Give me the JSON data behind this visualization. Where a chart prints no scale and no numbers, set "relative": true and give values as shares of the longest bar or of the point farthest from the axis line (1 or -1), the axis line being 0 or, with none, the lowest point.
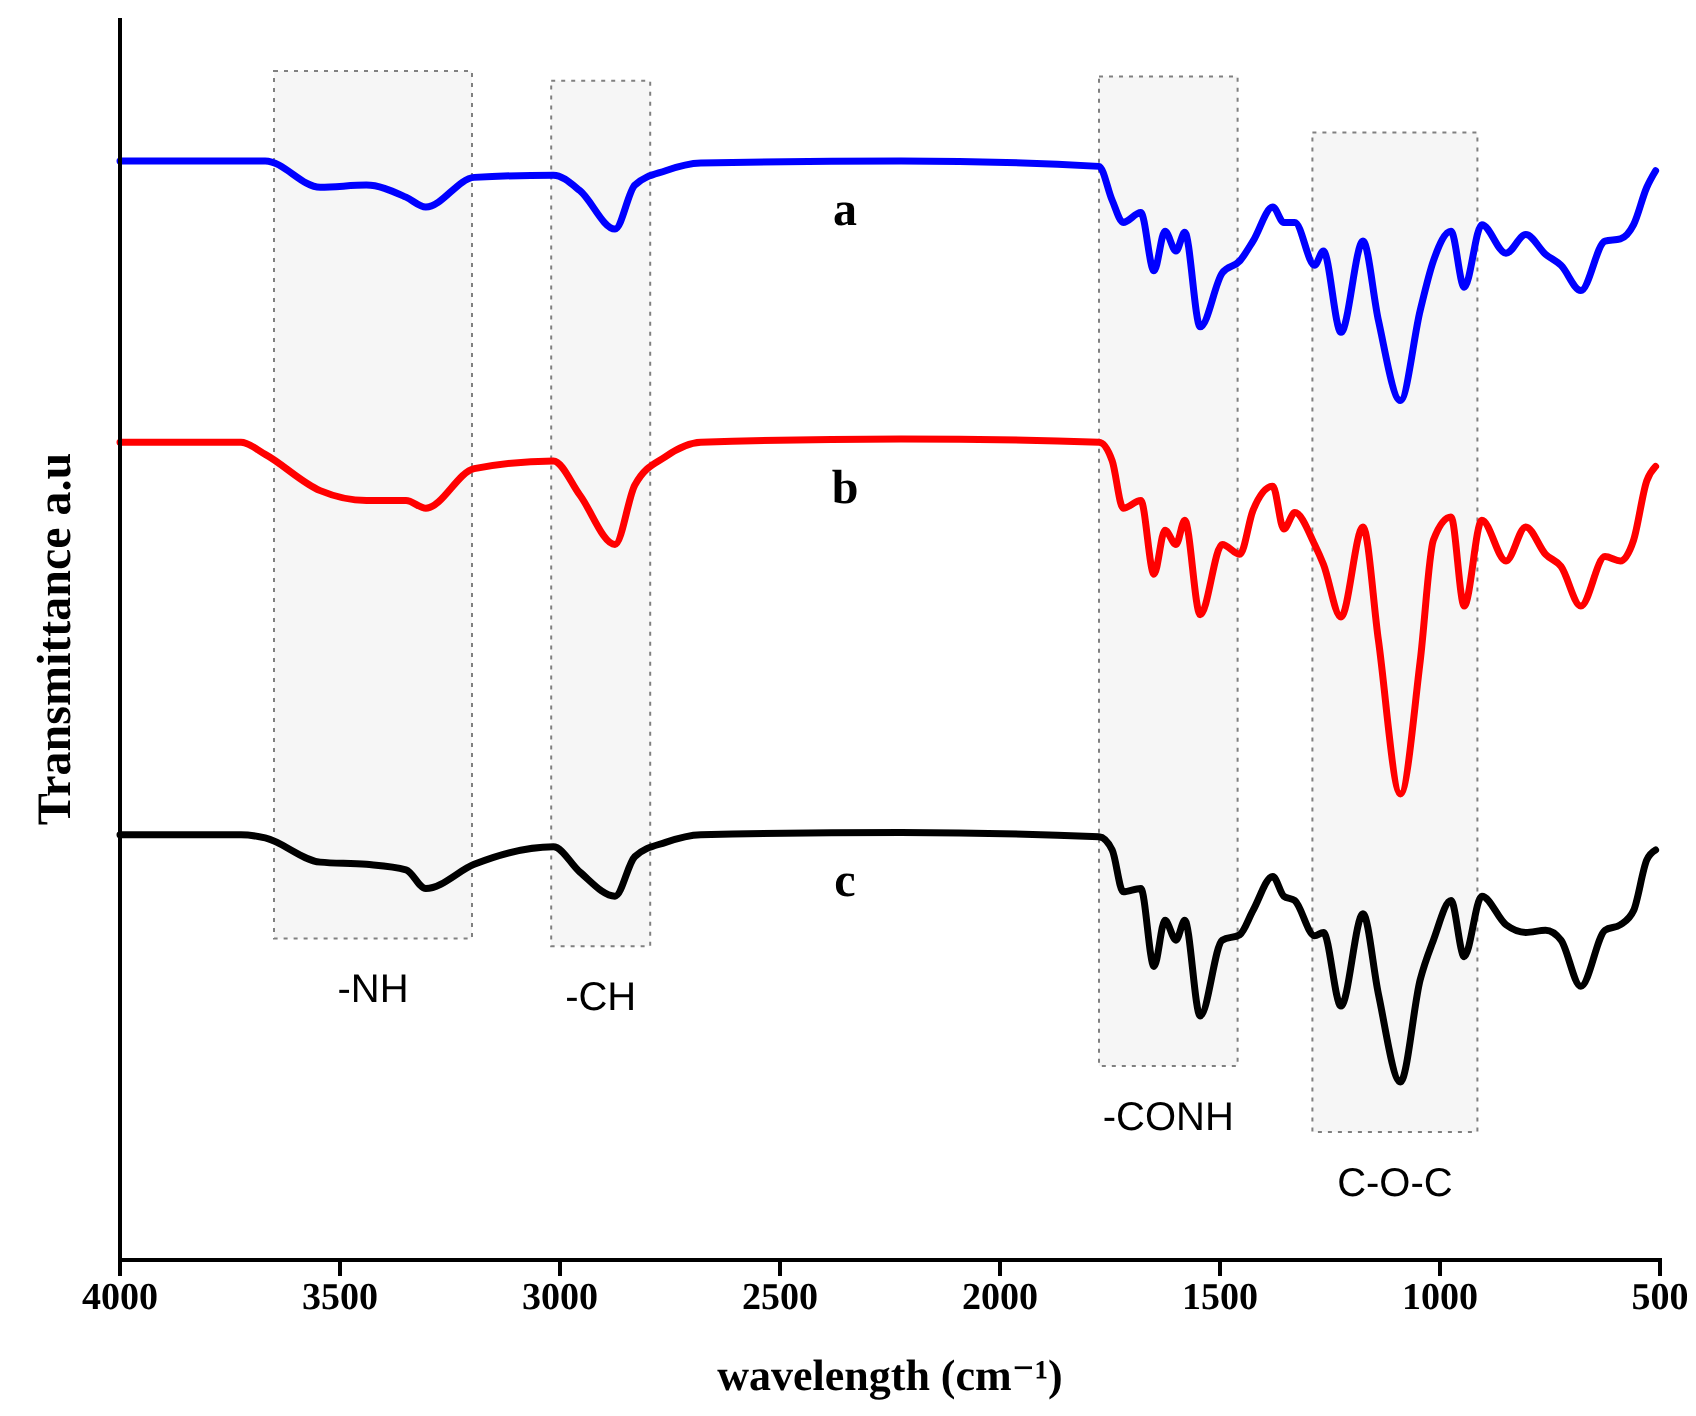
{
  "chart_data": {
    "type": "line",
    "relative": true,
    "xlabel": "wavelength (cm⁻¹)",
    "ylabel": "Transmittance a.u",
    "x": [
      4000,
      3725,
      3670,
      3545,
      3440,
      3350,
      3305,
      3195,
      3015,
      2955,
      2875,
      2830,
      2760,
      2680,
      2225,
      1775,
      1745,
      1720,
      1680,
      1650,
      1625,
      1600,
      1580,
      1545,
      1495,
      1455,
      1425,
      1380,
      1355,
      1330,
      1285,
      1265,
      1225,
      1175,
      1140,
      1090,
      1045,
      1015,
      975,
      945,
      905,
      850,
      805,
      760,
      725,
      680,
      625,
      590,
      560,
      530,
      510
    ],
    "xlim": [
      4000,
      500
    ],
    "xticks": [
      4000,
      3500,
      3000,
      2500,
      2000,
      1500,
      1000,
      500
    ],
    "series": [
      {
        "name": "a",
        "color": "#0000ff",
        "values": [
          1,
          1,
          1,
          0.976,
          0.978,
          0.967,
          0.958,
          0.985,
          0.987,
          0.973,
          0.938,
          0.978,
          0.991,
          0.998,
          1,
          0.995,
          0.964,
          0.944,
          0.953,
          0.9,
          0.936,
          0.918,
          0.935,
          0.849,
          0.898,
          0.909,
          0.927,
          0.958,
          0.944,
          0.944,
          0.905,
          0.918,
          0.844,
          0.927,
          0.855,
          0.782,
          0.864,
          0.909,
          0.936,
          0.885,
          0.942,
          0.916,
          0.933,
          0.915,
          0.905,
          0.882,
          0.927,
          0.929,
          0.942,
          0.976,
          0.991
        ]
      },
      {
        "name": "b",
        "color": "#ff0000",
        "values": [
          0.744,
          0.744,
          0.733,
          0.7,
          0.691,
          0.691,
          0.684,
          0.72,
          0.727,
          0.696,
          0.651,
          0.705,
          0.731,
          0.744,
          0.747,
          0.744,
          0.727,
          0.684,
          0.691,
          0.624,
          0.664,
          0.651,
          0.673,
          0.587,
          0.651,
          0.642,
          0.682,
          0.704,
          0.665,
          0.68,
          0.651,
          0.633,
          0.585,
          0.667,
          0.564,
          0.424,
          0.545,
          0.655,
          0.676,
          0.595,
          0.673,
          0.636,
          0.667,
          0.642,
          0.631,
          0.595,
          0.64,
          0.636,
          0.655,
          0.709,
          0.722
        ]
      },
      {
        "name": "c",
        "color": "#000000",
        "values": [
          0.387,
          0.387,
          0.384,
          0.362,
          0.36,
          0.355,
          0.338,
          0.36,
          0.376,
          0.353,
          0.331,
          0.367,
          0.38,
          0.387,
          0.389,
          0.385,
          0.373,
          0.335,
          0.338,
          0.267,
          0.309,
          0.291,
          0.309,
          0.222,
          0.291,
          0.296,
          0.318,
          0.349,
          0.331,
          0.327,
          0.295,
          0.298,
          0.231,
          0.315,
          0.242,
          0.162,
          0.255,
          0.291,
          0.327,
          0.276,
          0.331,
          0.305,
          0.298,
          0.3,
          0.291,
          0.249,
          0.3,
          0.305,
          0.318,
          0.364,
          0.373
        ]
      }
    ],
    "bands": [
      {
        "axis": "x",
        "from": 3650,
        "to": 3200,
        "label": "-NH",
        "color": "#808080"
      },
      {
        "axis": "x",
        "from": 3020,
        "to": 2795,
        "label": "-CH",
        "color": "#808080"
      },
      {
        "axis": "x",
        "from": 1775,
        "to": 1460,
        "label": "-CONH",
        "color": "#808080"
      },
      {
        "axis": "x",
        "from": 1290,
        "to": 915,
        "label": "C-O-C",
        "color": "#808080"
      }
    ],
    "line_style": "solid",
    "marker": "none"
  }
}
